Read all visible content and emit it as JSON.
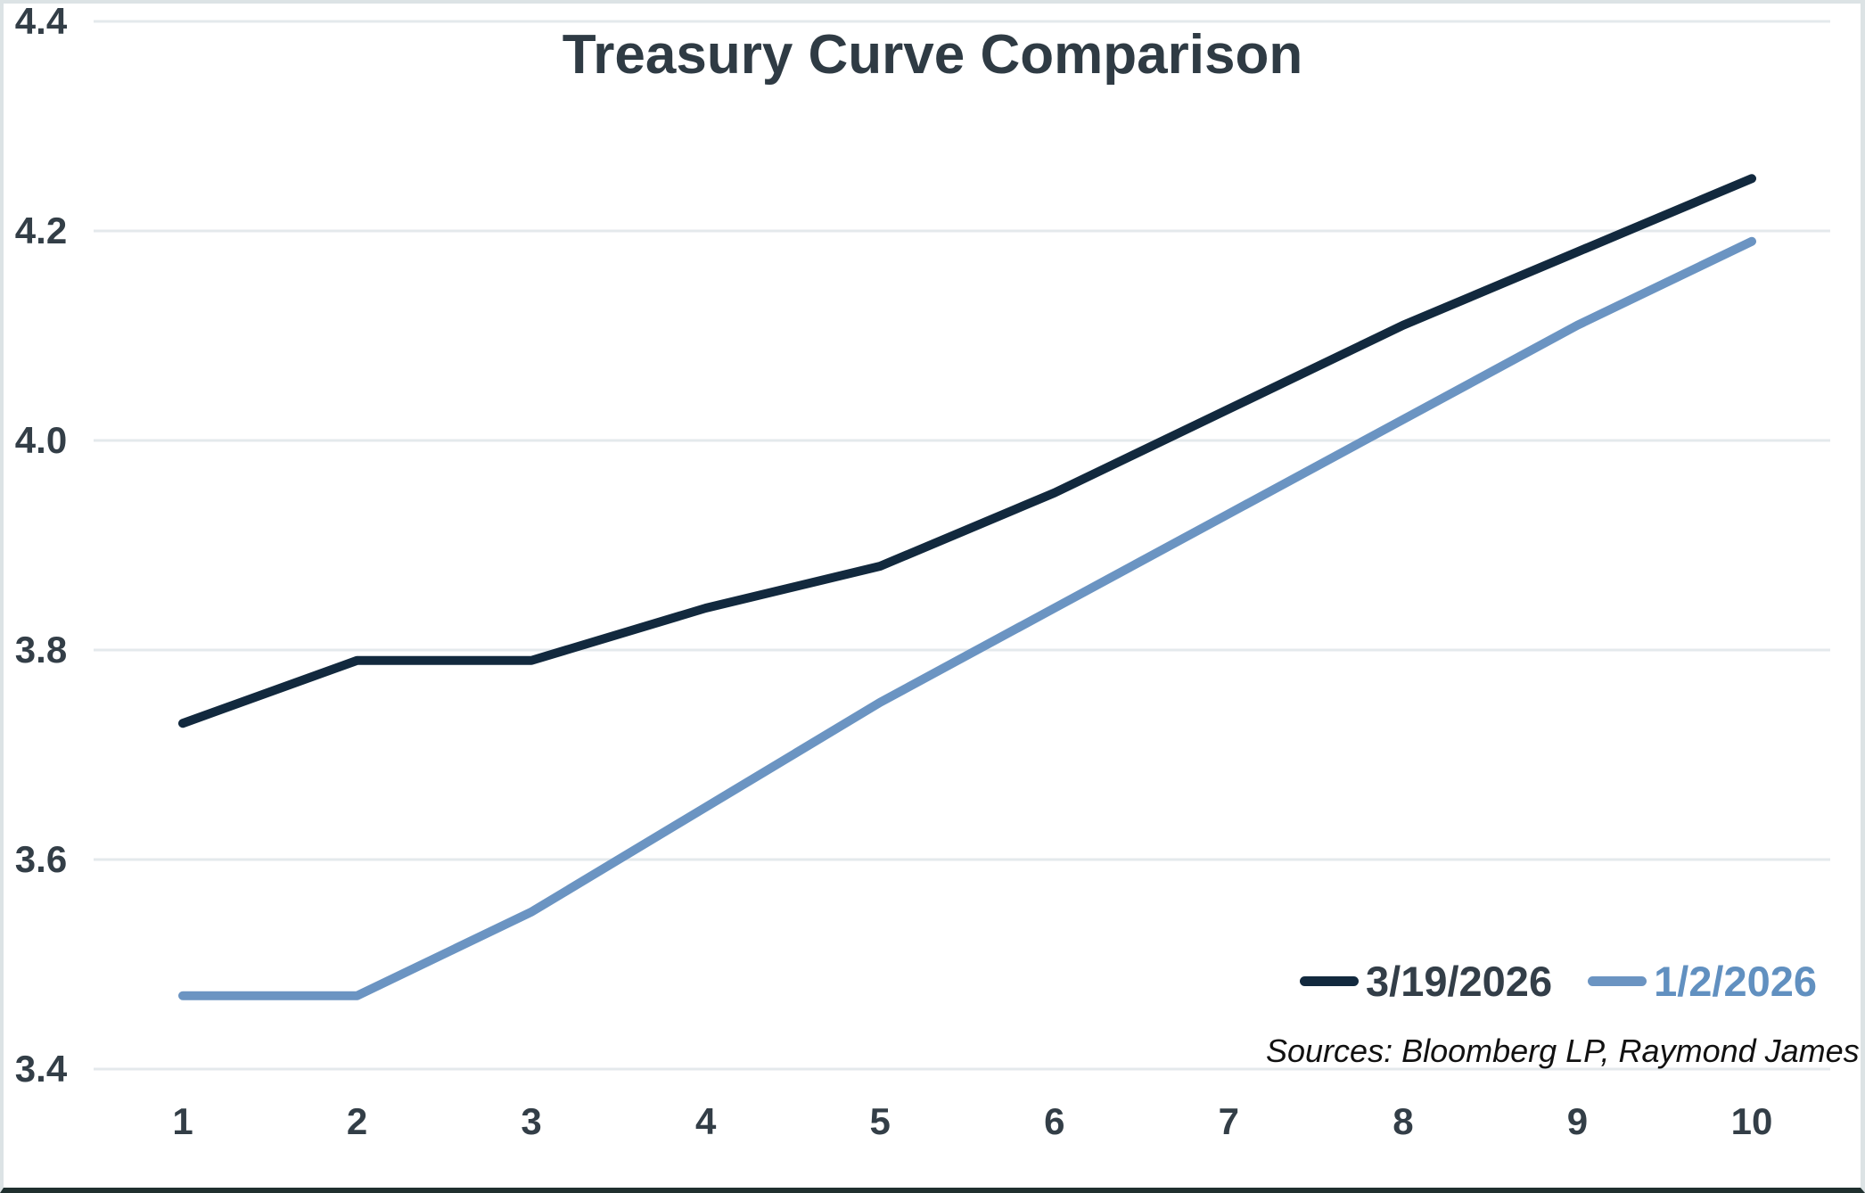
{
  "title": "Treasury Curve Comparison",
  "source_note": "Sources: Bloomberg LP, Raymond James",
  "colors": {
    "background": "#ffffff",
    "gridline": "#e4e9ec",
    "axis_label": "#333e47",
    "title": "#2f3b44",
    "frame_border": "#dce3e5",
    "frame_bottom_bar": "#20302f",
    "series_dark_navy": "#12293e",
    "series_steel_blue": "#6b94c2",
    "legend_label_dark": "#333e48",
    "legend_label_blue": "#6190c0"
  },
  "legend": {
    "position": "bottom-right",
    "items": [
      {
        "label": "3/19/2026",
        "dash_color": "#12293e",
        "text_color": "#333e48"
      },
      {
        "label": "1/2/2026",
        "dash_color": "#6b94c2",
        "text_color": "#6190c0"
      }
    ]
  },
  "chart_data": {
    "type": "line",
    "title": "Treasury Curve Comparison",
    "xlabel": "",
    "ylabel": "",
    "x": [
      1,
      2,
      3,
      4,
      5,
      6,
      7,
      8,
      9,
      10
    ],
    "x_tick_labels": [
      "1",
      "2",
      "3",
      "4",
      "5",
      "6",
      "7",
      "8",
      "9",
      "10"
    ],
    "xlim": [
      1,
      10
    ],
    "ylim": [
      3.4,
      4.4
    ],
    "y_ticks": [
      3.4,
      3.6,
      3.8,
      4.0,
      4.2,
      4.4
    ],
    "y_tick_labels": [
      "3.4",
      "3.6",
      "3.8",
      "4.0",
      "4.2",
      "4.4"
    ],
    "grid": "horizontal",
    "legend_position": "bottom-right",
    "series": [
      {
        "name": "3/19/2026",
        "color": "#12293e",
        "values": [
          3.73,
          3.79,
          3.79,
          3.84,
          3.88,
          3.95,
          4.03,
          4.11,
          4.18,
          4.25
        ]
      },
      {
        "name": "1/2/2026",
        "color": "#6b94c2",
        "values": [
          3.47,
          3.47,
          3.55,
          3.65,
          3.75,
          3.84,
          3.93,
          4.02,
          4.11,
          4.19
        ]
      }
    ]
  }
}
